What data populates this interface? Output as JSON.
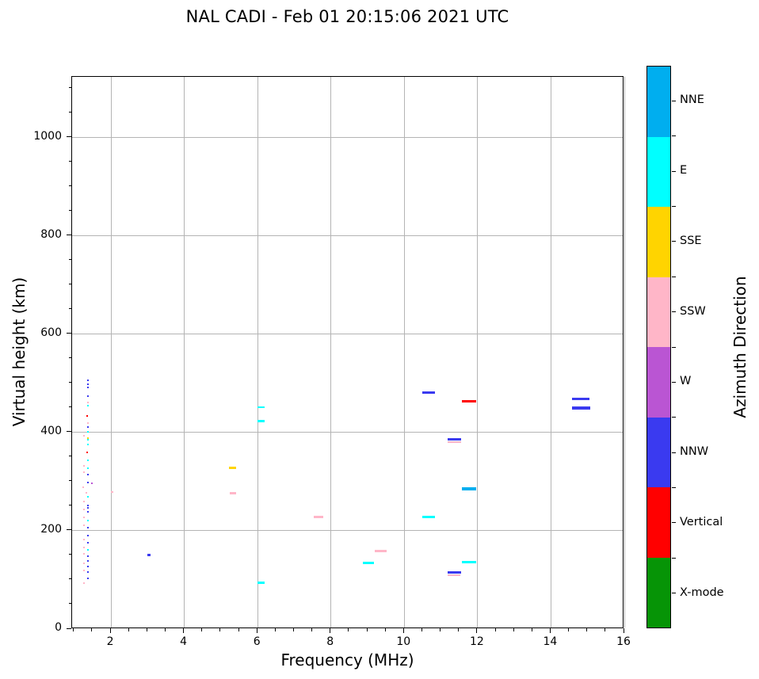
{
  "title": "NAL CADI - Feb 01 20:15:06 2021 UTC",
  "axes": {
    "xlabel": "Frequency (MHz)",
    "ylabel": "Virtual height (km)",
    "xlim": [
      0.94,
      16
    ],
    "ylim": [
      0,
      1124
    ],
    "xticks": [
      2,
      4,
      6,
      8,
      10,
      12,
      14,
      16
    ],
    "yticks": [
      0,
      200,
      400,
      600,
      800,
      1000
    ],
    "x_minor_step": 0.5,
    "y_minor_step": 50,
    "grid": true,
    "grid_color": "#b4b4b4"
  },
  "colorbar": {
    "label": "Azimuth Direction",
    "categories": [
      {
        "name": "NNE",
        "color": "#00aeef"
      },
      {
        "name": "E",
        "color": "#00ffff"
      },
      {
        "name": "SSE",
        "color": "#ffd400"
      },
      {
        "name": "SSW",
        "color": "#ffb6c8"
      },
      {
        "name": "W",
        "color": "#ba55d3"
      },
      {
        "name": "NNW",
        "color": "#3a3af0"
      },
      {
        "name": "Vertical",
        "color": "#ff0000"
      },
      {
        "name": "X-mode",
        "color": "#069406"
      }
    ]
  },
  "chart_data": {
    "type": "scatter",
    "title": "NAL CADI - Feb 01 20:15:06 2021 UTC",
    "xlabel": "Frequency (MHz)",
    "ylabel": "Virtual height (km)",
    "xlim": [
      0.94,
      16
    ],
    "ylim": [
      0,
      1124
    ],
    "grid": true,
    "legend": {
      "position": "right-colorbar",
      "label": "Azimuth Direction",
      "entries": [
        "NNE",
        "E",
        "SSE",
        "SSW",
        "W",
        "NNW",
        "Vertical",
        "X-mode"
      ]
    },
    "units": {
      "x": "MHz",
      "y": "km"
    },
    "points_format": [
      "freq_MHz",
      "virtual_height_km",
      "azimuth_direction"
    ],
    "points": [
      [
        1.37,
        506,
        "NNW"
      ],
      [
        1.37,
        499,
        "NNW"
      ],
      [
        1.37,
        492,
        "NNW"
      ],
      [
        1.37,
        474,
        "NNW"
      ],
      [
        1.37,
        461,
        "SSW"
      ],
      [
        1.37,
        455,
        "E"
      ],
      [
        1.36,
        434,
        "Vertical"
      ],
      [
        1.37,
        419,
        "SSW"
      ],
      [
        1.37,
        412,
        "NNW"
      ],
      [
        1.37,
        402,
        "E"
      ],
      [
        1.27,
        393,
        "SSW"
      ],
      [
        1.37,
        389,
        "SSE"
      ],
      [
        1.37,
        385,
        "E"
      ],
      [
        1.37,
        375,
        "E"
      ],
      [
        1.36,
        359,
        "Vertical"
      ],
      [
        1.37,
        343,
        "E"
      ],
      [
        1.27,
        332,
        "SSW"
      ],
      [
        1.37,
        328,
        "E"
      ],
      [
        1.27,
        319,
        "SSW"
      ],
      [
        1.37,
        314,
        "NNW"
      ],
      [
        1.37,
        299,
        "NNW"
      ],
      [
        1.47,
        296,
        "W"
      ],
      [
        1.25,
        288,
        "SSW"
      ],
      [
        1.33,
        277,
        "SSW"
      ],
      [
        1.37,
        269,
        "E"
      ],
      [
        1.27,
        259,
        "SSW"
      ],
      [
        1.37,
        252,
        "NNW"
      ],
      [
        1.37,
        247,
        "NNW"
      ],
      [
        1.27,
        244,
        "SSW"
      ],
      [
        1.37,
        239,
        "NNW"
      ],
      [
        1.27,
        227,
        "SSW"
      ],
      [
        1.37,
        221,
        "E"
      ],
      [
        1.27,
        211,
        "SSW"
      ],
      [
        1.37,
        206,
        "NNW"
      ],
      [
        1.37,
        191,
        "NNW"
      ],
      [
        1.27,
        182,
        "SSW"
      ],
      [
        1.37,
        176,
        "NNW"
      ],
      [
        1.27,
        166,
        "SSW"
      ],
      [
        1.37,
        161,
        "E"
      ],
      [
        1.27,
        153,
        "SSW"
      ],
      [
        1.37,
        148,
        "NNW"
      ],
      [
        1.37,
        139,
        "NNW"
      ],
      [
        1.27,
        134,
        "SSW"
      ],
      [
        1.37,
        128,
        "NNW"
      ],
      [
        1.27,
        120,
        "SSW"
      ],
      [
        1.37,
        116,
        "NNW"
      ],
      [
        1.38,
        103,
        "NNW"
      ],
      [
        1.27,
        94,
        "SSW"
      ]
    ],
    "segments_format": [
      "freq_start_MHz",
      "freq_end_MHz",
      "virtual_height_km",
      "azimuth_direction",
      "thickness_px"
    ],
    "segments": [
      [
        1.99,
        2.07,
        279,
        "SSW",
        2
      ],
      [
        2.99,
        3.08,
        150,
        "NNW",
        3
      ],
      [
        5.22,
        5.42,
        328,
        "SSE",
        3
      ],
      [
        5.23,
        5.42,
        276,
        "SSW",
        3
      ],
      [
        5.99,
        6.19,
        452,
        "E",
        2
      ],
      [
        5.99,
        6.19,
        423,
        "E",
        3
      ],
      [
        5.99,
        6.19,
        94,
        "E",
        3
      ],
      [
        7.52,
        7.79,
        228,
        "SSW",
        3
      ],
      [
        8.88,
        9.18,
        134,
        "E",
        3
      ],
      [
        9.2,
        9.51,
        159,
        "SSW",
        3
      ],
      [
        10.49,
        10.84,
        482,
        "NNW",
        3
      ],
      [
        10.49,
        10.84,
        228,
        "E",
        3
      ],
      [
        11.19,
        11.56,
        387,
        "NNW",
        3
      ],
      [
        11.19,
        11.56,
        381,
        "SSW",
        2
      ],
      [
        11.57,
        11.95,
        464,
        "Vertical",
        3
      ],
      [
        11.57,
        11.95,
        286,
        "NNE",
        4
      ],
      [
        11.57,
        11.95,
        136,
        "E",
        3
      ],
      [
        11.19,
        11.56,
        115,
        "NNW",
        3
      ],
      [
        11.19,
        11.52,
        110,
        "SSW",
        2
      ],
      [
        14.58,
        15.06,
        469,
        "NNW",
        3
      ],
      [
        14.58,
        15.07,
        450,
        "NNW",
        4
      ]
    ]
  }
}
